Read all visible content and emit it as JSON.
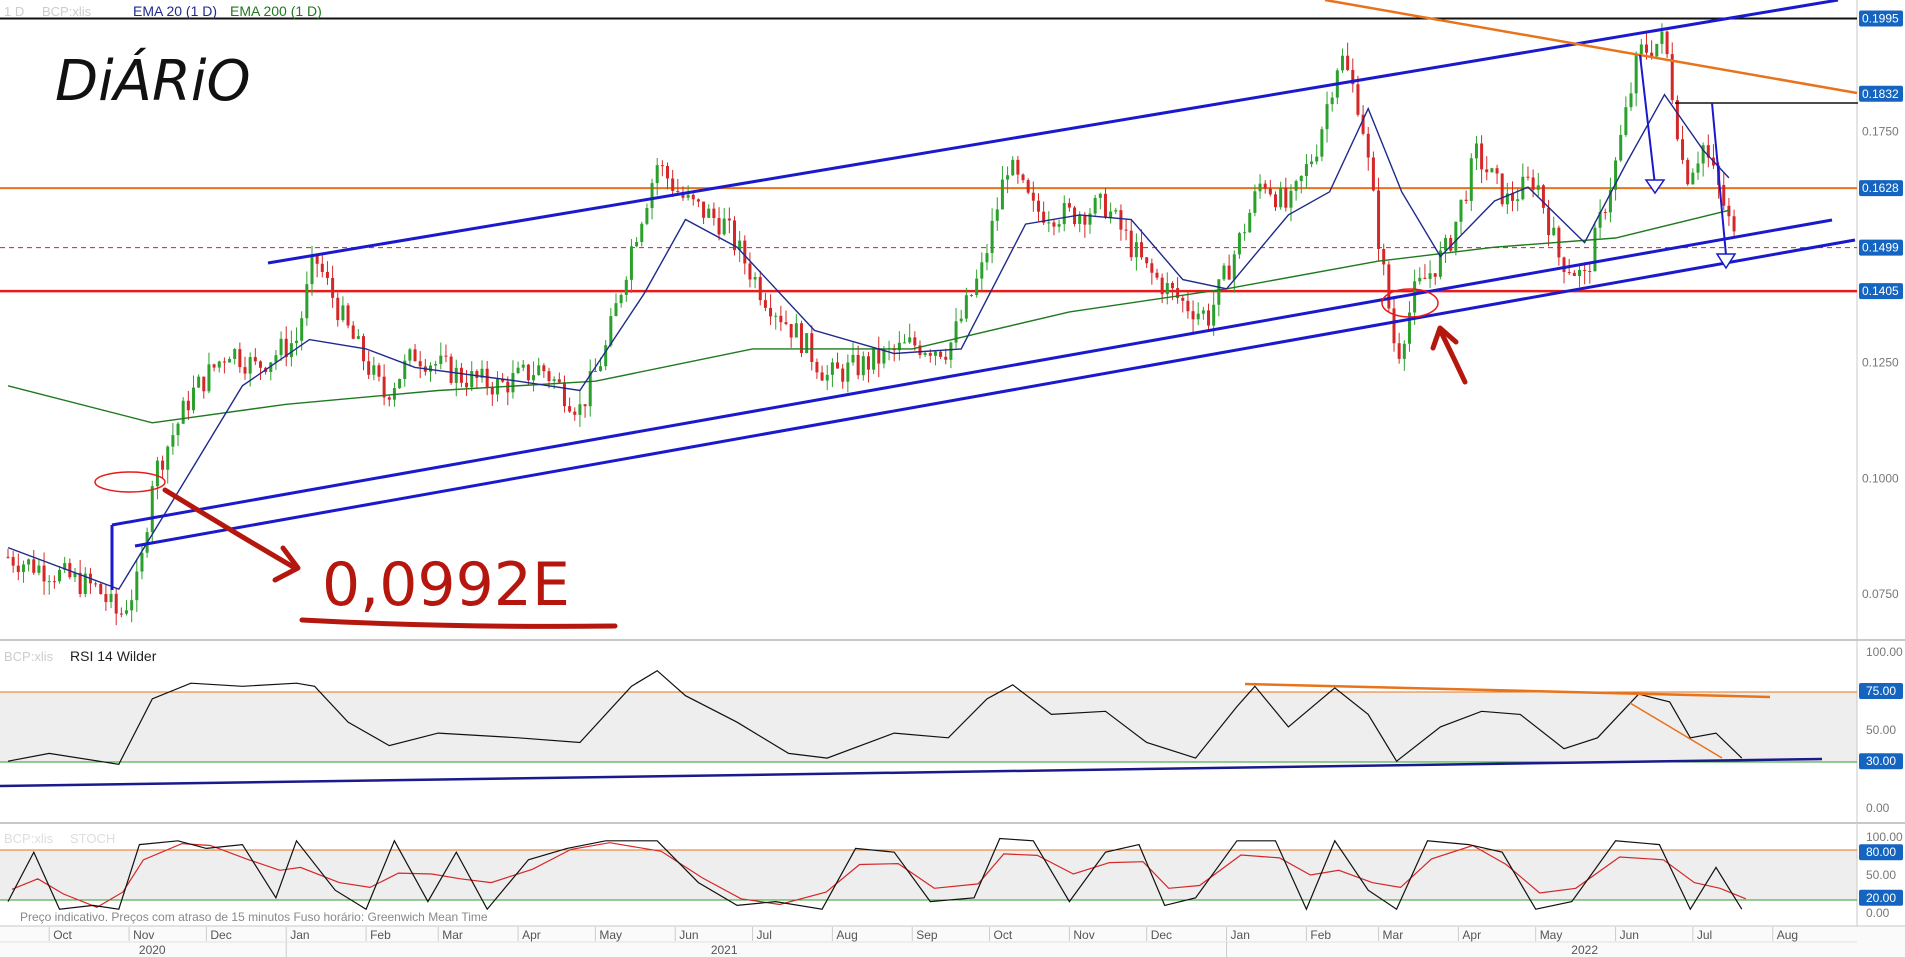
{
  "header": {
    "interval": "1 D",
    "symbol": "BCP:xlis",
    "ema20_label": "EMA 20  (1 D)",
    "ema200_label": "EMA 200  (1 D)"
  },
  "annotations": {
    "handwritten_title": "DiÁRiO",
    "handwritten_price": "0,0992E"
  },
  "footer": {
    "disclaimer": "Preço indicativo. Preços com atraso de 15 minutos    Fuso horário: Greenwich Mean Time"
  },
  "colors": {
    "up": "#2ca02c",
    "down": "#d62728",
    "ema20": "#1f2a8c",
    "ema200": "#1f7a1f",
    "channel": "#1a1acc",
    "resistance": "#e8731a",
    "support": "#e81a1a",
    "marker": "#b5170f"
  },
  "price_panel": {
    "y_ticks": [
      "0.1750",
      "0.1250",
      "0.1000",
      "0.0750"
    ],
    "highlighted_levels": [
      {
        "value": "0.1995",
        "bg": "#1565c0"
      },
      {
        "value": "0.1832",
        "bg": "#1565c0"
      },
      {
        "value": "0.1628",
        "bg": "#1565c0"
      },
      {
        "value": "0.1499",
        "bg": "#1565c0"
      },
      {
        "value": "0.1405",
        "bg": "#1565c0"
      }
    ]
  },
  "rsi_panel": {
    "label_symbol": "BCP:xlis",
    "label": "RSI 14 Wilder",
    "y_ticks": [
      "100.00",
      "50.00",
      "0.00"
    ],
    "highlighted": [
      "75.00",
      "30.00"
    ]
  },
  "stoch_panel": {
    "label_symbol": "BCP:xlis",
    "label": "STOCH",
    "y_ticks": [
      "100.00",
      "50.00",
      "0.00"
    ],
    "highlighted": [
      "80.00",
      "20.00"
    ]
  },
  "time_axis": {
    "months": [
      "Oct",
      "Nov",
      "Dec",
      "Jan",
      "Feb",
      "Mar",
      "Apr",
      "May",
      "Jun",
      "Jul",
      "Aug",
      "Sep",
      "Oct",
      "Nov",
      "Dec",
      "Jan",
      "Feb",
      "Mar",
      "Apr",
      "May",
      "Jun",
      "Jul",
      "Aug"
    ],
    "years": [
      "2020",
      "2021",
      "2022"
    ]
  },
  "chart_data": {
    "type": "candlestick",
    "y_range": [
      0.065,
      0.2035
    ],
    "series_points": [
      [
        "2020-09-15",
        0.083
      ],
      [
        "2020-10-01",
        0.08
      ],
      [
        "2020-10-20",
        0.076
      ],
      [
        "2020-10-28",
        0.07
      ],
      [
        "2020-11-05",
        0.078
      ],
      [
        "2020-11-10",
        0.1
      ],
      [
        "2020-11-25",
        0.118
      ],
      [
        "2020-12-10",
        0.128
      ],
      [
        "2020-12-20",
        0.124
      ],
      [
        "2021-01-05",
        0.13
      ],
      [
        "2021-01-12",
        0.148
      ],
      [
        "2021-01-25",
        0.132
      ],
      [
        "2021-02-08",
        0.118
      ],
      [
        "2021-02-20",
        0.127
      ],
      [
        "2021-03-10",
        0.122
      ],
      [
        "2021-03-25",
        0.12
      ],
      [
        "2021-04-10",
        0.124
      ],
      [
        "2021-04-25",
        0.115
      ],
      [
        "2021-05-05",
        0.128
      ],
      [
        "2021-05-15",
        0.15
      ],
      [
        "2021-05-25",
        0.168
      ],
      [
        "2021-06-05",
        0.16
      ],
      [
        "2021-06-20",
        0.155
      ],
      [
        "2021-07-05",
        0.14
      ],
      [
        "2021-07-20",
        0.13
      ],
      [
        "2021-07-30",
        0.122
      ],
      [
        "2021-08-15",
        0.125
      ],
      [
        "2021-09-01",
        0.129
      ],
      [
        "2021-09-15",
        0.128
      ],
      [
        "2021-09-28",
        0.145
      ],
      [
        "2021-10-08",
        0.168
      ],
      [
        "2021-10-18",
        0.158
      ],
      [
        "2021-11-01",
        0.157
      ],
      [
        "2021-11-15",
        0.159
      ],
      [
        "2021-12-01",
        0.145
      ],
      [
        "2021-12-15",
        0.138
      ],
      [
        "2021-12-25",
        0.135
      ],
      [
        "2022-01-05",
        0.15
      ],
      [
        "2022-01-15",
        0.165
      ],
      [
        "2022-01-25",
        0.158
      ],
      [
        "2022-02-05",
        0.172
      ],
      [
        "2022-02-14",
        0.192
      ],
      [
        "2022-02-22",
        0.18
      ],
      [
        "2022-03-02",
        0.148
      ],
      [
        "2022-03-08",
        0.126
      ],
      [
        "2022-03-15",
        0.14
      ],
      [
        "2022-03-28",
        0.15
      ],
      [
        "2022-04-08",
        0.17
      ],
      [
        "2022-04-20",
        0.16
      ],
      [
        "2022-05-01",
        0.165
      ],
      [
        "2022-05-10",
        0.148
      ],
      [
        "2022-05-20",
        0.143
      ],
      [
        "2022-06-01",
        0.168
      ],
      [
        "2022-06-10",
        0.192
      ],
      [
        "2022-06-20",
        0.195
      ],
      [
        "2022-06-28",
        0.165
      ],
      [
        "2022-07-05",
        0.172
      ],
      [
        "2022-07-12",
        0.161
      ],
      [
        "2022-07-18",
        0.15
      ]
    ],
    "ema20_points": [
      [
        "2020-09-15",
        0.085
      ],
      [
        "2020-10-28",
        0.076
      ],
      [
        "2020-11-20",
        0.097
      ],
      [
        "2020-12-15",
        0.12
      ],
      [
        "2021-01-10",
        0.13
      ],
      [
        "2021-02-01",
        0.128
      ],
      [
        "2021-02-20",
        0.124
      ],
      [
        "2021-04-01",
        0.121
      ],
      [
        "2021-04-25",
        0.119
      ],
      [
        "2021-05-20",
        0.14
      ],
      [
        "2021-06-05",
        0.156
      ],
      [
        "2021-06-25",
        0.15
      ],
      [
        "2021-07-25",
        0.132
      ],
      [
        "2021-08-25",
        0.127
      ],
      [
        "2021-09-20",
        0.128
      ],
      [
        "2021-10-15",
        0.155
      ],
      [
        "2021-11-05",
        0.157
      ],
      [
        "2021-11-25",
        0.156
      ],
      [
        "2021-12-15",
        0.143
      ],
      [
        "2022-01-01",
        0.141
      ],
      [
        "2022-01-25",
        0.157
      ],
      [
        "2022-02-10",
        0.162
      ],
      [
        "2022-02-25",
        0.18
      ],
      [
        "2022-03-10",
        0.162
      ],
      [
        "2022-03-25",
        0.148
      ],
      [
        "2022-04-15",
        0.16
      ],
      [
        "2022-04-28",
        0.163
      ],
      [
        "2022-05-20",
        0.151
      ],
      [
        "2022-06-05",
        0.168
      ],
      [
        "2022-06-20",
        0.183
      ],
      [
        "2022-07-05",
        0.171
      ],
      [
        "2022-07-15",
        0.165
      ]
    ],
    "ema200_points": [
      [
        "2020-09-15",
        0.12
      ],
      [
        "2020-11-10",
        0.112
      ],
      [
        "2021-01-01",
        0.116
      ],
      [
        "2021-03-01",
        0.119
      ],
      [
        "2021-05-01",
        0.121
      ],
      [
        "2021-07-01",
        0.128
      ],
      [
        "2021-09-01",
        0.128
      ],
      [
        "2021-11-01",
        0.136
      ],
      [
        "2022-01-01",
        0.141
      ],
      [
        "2022-03-01",
        0.147
      ],
      [
        "2022-04-15",
        0.15
      ],
      [
        "2022-06-01",
        0.152
      ],
      [
        "2022-07-15",
        0.158
      ]
    ],
    "horizontal_levels": [
      {
        "value": 0.1995,
        "style": "black"
      },
      {
        "value": 0.1628,
        "style": "orange"
      },
      {
        "value": 0.1499,
        "style": "dashed-red"
      },
      {
        "value": 0.1405,
        "style": "red"
      }
    ],
    "rsi": {
      "y_range": [
        0,
        100
      ],
      "bands": [
        30,
        75
      ],
      "points": [
        [
          "2020-09-15",
          30
        ],
        [
          "2020-10-01",
          35
        ],
        [
          "2020-10-28",
          28
        ],
        [
          "2020-11-10",
          70
        ],
        [
          "2020-11-25",
          80
        ],
        [
          "2020-12-15",
          78
        ],
        [
          "2021-01-05",
          80
        ],
        [
          "2021-01-12",
          78
        ],
        [
          "2021-01-25",
          55
        ],
        [
          "2021-02-10",
          40
        ],
        [
          "2021-03-01",
          48
        ],
        [
          "2021-04-01",
          45
        ],
        [
          "2021-04-25",
          42
        ],
        [
          "2021-05-15",
          78
        ],
        [
          "2021-05-25",
          88
        ],
        [
          "2021-06-05",
          72
        ],
        [
          "2021-06-25",
          55
        ],
        [
          "2021-07-15",
          35
        ],
        [
          "2021-07-30",
          32
        ],
        [
          "2021-08-25",
          48
        ],
        [
          "2021-09-15",
          45
        ],
        [
          "2021-09-30",
          70
        ],
        [
          "2021-10-10",
          79
        ],
        [
          "2021-10-25",
          60
        ],
        [
          "2021-11-15",
          62
        ],
        [
          "2021-12-01",
          42
        ],
        [
          "2021-12-20",
          32
        ],
        [
          "2022-01-05",
          65
        ],
        [
          "2022-01-12",
          78
        ],
        [
          "2022-01-25",
          52
        ],
        [
          "2022-02-12",
          77
        ],
        [
          "2022-02-25",
          60
        ],
        [
          "2022-03-08",
          30
        ],
        [
          "2022-03-25",
          52
        ],
        [
          "2022-04-10",
          62
        ],
        [
          "2022-04-25",
          60
        ],
        [
          "2022-05-12",
          38
        ],
        [
          "2022-05-25",
          45
        ],
        [
          "2022-06-10",
          73
        ],
        [
          "2022-06-22",
          68
        ],
        [
          "2022-06-30",
          45
        ],
        [
          "2022-07-10",
          48
        ],
        [
          "2022-07-20",
          32
        ]
      ]
    },
    "stoch": {
      "y_range": [
        0,
        100
      ],
      "bands": [
        20,
        80
      ],
      "k_points": [
        [
          "2020-09-15",
          15
        ],
        [
          "2020-09-25",
          80
        ],
        [
          "2020-10-05",
          5
        ],
        [
          "2020-10-18",
          10
        ],
        [
          "2020-10-28",
          5
        ],
        [
          "2020-11-05",
          90
        ],
        [
          "2020-11-20",
          95
        ],
        [
          "2020-12-01",
          85
        ],
        [
          "2020-12-15",
          90
        ],
        [
          "2020-12-28",
          20
        ],
        [
          "2021-01-05",
          95
        ],
        [
          "2021-01-20",
          30
        ],
        [
          "2021-02-01",
          5
        ],
        [
          "2021-02-12",
          95
        ],
        [
          "2021-02-25",
          15
        ],
        [
          "2021-03-08",
          80
        ],
        [
          "2021-03-20",
          5
        ],
        [
          "2021-04-05",
          70
        ],
        [
          "2021-04-20",
          85
        ],
        [
          "2021-05-05",
          95
        ],
        [
          "2021-05-25",
          95
        ],
        [
          "2021-06-10",
          40
        ],
        [
          "2021-06-25",
          10
        ],
        [
          "2021-07-10",
          15
        ],
        [
          "2021-07-28",
          5
        ],
        [
          "2021-08-10",
          85
        ],
        [
          "2021-08-25",
          80
        ],
        [
          "2021-09-08",
          15
        ],
        [
          "2021-09-25",
          20
        ],
        [
          "2021-10-05",
          98
        ],
        [
          "2021-10-18",
          95
        ],
        [
          "2021-11-01",
          15
        ],
        [
          "2021-11-15",
          80
        ],
        [
          "2021-11-28",
          90
        ],
        [
          "2021-12-08",
          10
        ],
        [
          "2021-12-20",
          20
        ],
        [
          "2022-01-05",
          95
        ],
        [
          "2022-01-20",
          95
        ],
        [
          "2022-02-01",
          5
        ],
        [
          "2022-02-12",
          95
        ],
        [
          "2022-02-25",
          30
        ],
        [
          "2022-03-08",
          5
        ],
        [
          "2022-03-20",
          95
        ],
        [
          "2022-04-05",
          90
        ],
        [
          "2022-04-18",
          80
        ],
        [
          "2022-05-01",
          5
        ],
        [
          "2022-05-15",
          15
        ],
        [
          "2022-06-01",
          95
        ],
        [
          "2022-06-18",
          90
        ],
        [
          "2022-06-30",
          5
        ],
        [
          "2022-07-10",
          60
        ],
        [
          "2022-07-20",
          5
        ]
      ]
    }
  }
}
